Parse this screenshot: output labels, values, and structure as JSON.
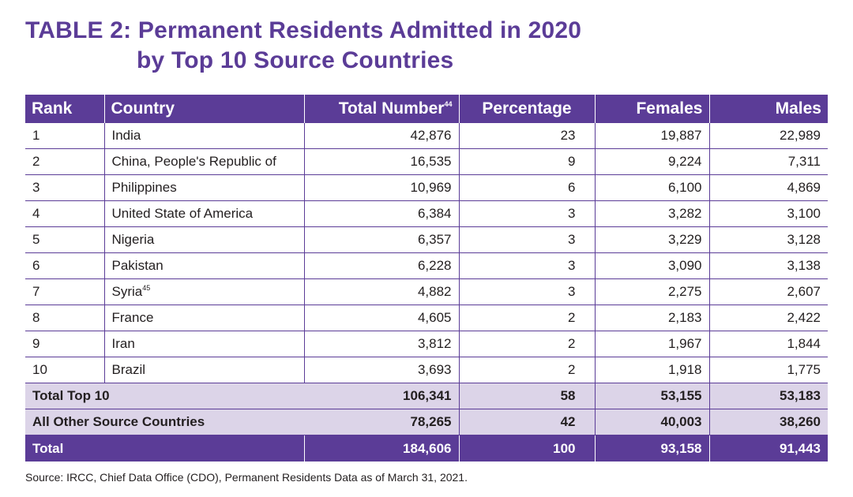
{
  "title": {
    "line1": "TABLE 2:  Permanent Residents Admitted in 2020",
    "line2": "by Top 10 Source Countries"
  },
  "table": {
    "headers": {
      "rank": "Rank",
      "country": "Country",
      "total": "Total Number",
      "total_footnote": "44",
      "percentage": "Percentage",
      "females": "Females",
      "males": "Males"
    },
    "rows": [
      {
        "rank": "1",
        "country": "India",
        "footnote": "",
        "total": "42,876",
        "percentage": "23",
        "females": "19,887",
        "males": "22,989"
      },
      {
        "rank": "2",
        "country": "China, People's Republic of",
        "footnote": "",
        "total": "16,535",
        "percentage": "9",
        "females": "9,224",
        "males": "7,311"
      },
      {
        "rank": "3",
        "country": "Philippines",
        "footnote": "",
        "total": "10,969",
        "percentage": "6",
        "females": "6,100",
        "males": "4,869"
      },
      {
        "rank": "4",
        "country": "United State of America",
        "footnote": "",
        "total": "6,384",
        "percentage": "3",
        "females": "3,282",
        "males": "3,100"
      },
      {
        "rank": "5",
        "country": "Nigeria",
        "footnote": "",
        "total": "6,357",
        "percentage": "3",
        "females": "3,229",
        "males": "3,128"
      },
      {
        "rank": "6",
        "country": "Pakistan",
        "footnote": "",
        "total": "6,228",
        "percentage": "3",
        "females": "3,090",
        "males": "3,138"
      },
      {
        "rank": "7",
        "country": "Syria",
        "footnote": "45",
        "total": "4,882",
        "percentage": "3",
        "females": "2,275",
        "males": "2,607"
      },
      {
        "rank": "8",
        "country": "France",
        "footnote": "",
        "total": "4,605",
        "percentage": "2",
        "females": "2,183",
        "males": "2,422"
      },
      {
        "rank": "9",
        "country": "Iran",
        "footnote": "",
        "total": "3,812",
        "percentage": "2",
        "females": "1,967",
        "males": "1,844"
      },
      {
        "rank": "10",
        "country": "Brazil",
        "footnote": "",
        "total": "3,693",
        "percentage": "2",
        "females": "1,918",
        "males": "1,775"
      }
    ],
    "total_top10": {
      "label": "Total Top 10",
      "total": "106,341",
      "percentage": "58",
      "females": "53,155",
      "males": "53,183"
    },
    "all_other": {
      "label": "All Other Source Countries",
      "total": "78,265",
      "percentage": "42",
      "females": "40,003",
      "males": "38,260"
    },
    "grand_total": {
      "label": "Total",
      "total": "184,606",
      "percentage": "100",
      "females": "93,158",
      "males": "91,443"
    }
  },
  "source": "Source: IRCC, Chief Data Office (CDO), Permanent Residents Data as of March 31, 2021.",
  "colors": {
    "accent": "#5b3c97",
    "subtotal_bg": "#dcd4e8",
    "text": "#231f20"
  }
}
